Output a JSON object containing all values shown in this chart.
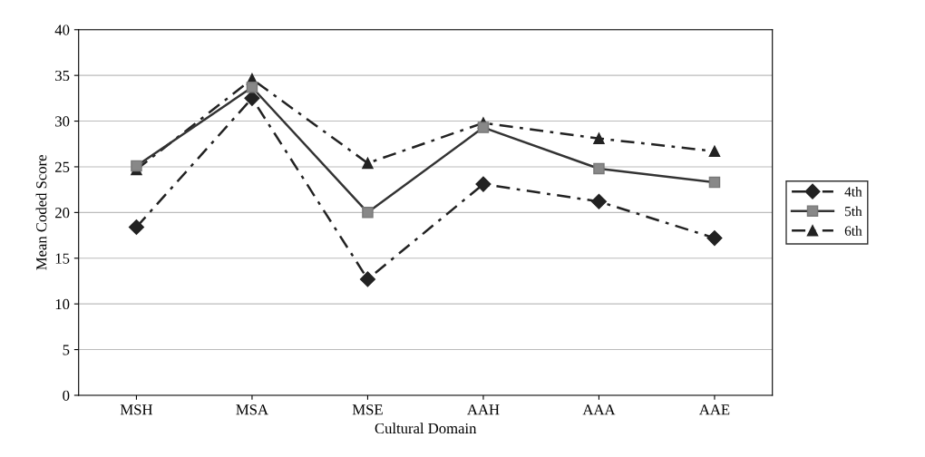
{
  "chart_data": {
    "type": "line",
    "xlabel": "Cultural Domain",
    "ylabel": "Mean Coded Score",
    "categories": [
      "MSH",
      "MSA",
      "MSE",
      "AAH",
      "AAA",
      "AAE"
    ],
    "series": [
      {
        "name": "4th",
        "color": "#222222",
        "marker": "diamond",
        "line_style": "dashed",
        "values": [
          18.4,
          32.5,
          12.7,
          23.1,
          21.2,
          17.2
        ]
      },
      {
        "name": "5th",
        "color": "#333333",
        "marker": "square",
        "line_style": "solid",
        "values": [
          25.1,
          33.7,
          20.0,
          29.3,
          24.8,
          23.3
        ]
      },
      {
        "name": "6th",
        "color": "#222222",
        "marker": "triangle",
        "line_style": "dashed",
        "values": [
          24.7,
          34.6,
          25.4,
          29.8,
          28.1,
          26.7
        ]
      }
    ],
    "ylim": [
      0,
      40
    ],
    "yticks": [
      0,
      5,
      10,
      15,
      20,
      25,
      30,
      35,
      40
    ],
    "grid": "y",
    "legend": "right"
  }
}
